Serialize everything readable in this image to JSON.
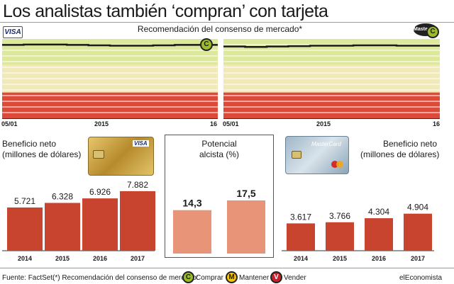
{
  "title": "Los analistas también ‘compran’ con tarjeta",
  "subtitle": "Recomendación del consenso de mercado*",
  "logos": {
    "visa": "VISA",
    "mastercard": "MasterCard"
  },
  "consensus_axis": {
    "start": "05/01",
    "mid": "2015",
    "end": "16"
  },
  "signal_letters": {
    "comprar": "C",
    "mantener": "M",
    "vender": "V"
  },
  "colors": {
    "buy_zone": "#dde89a",
    "hold_zone": "#f2e9b8",
    "sell_zone": "#dc4b3a",
    "gridline": "#ffffff",
    "bar_red": "#c9442f",
    "bar_salmon": "#e89478",
    "comprar_badge": "#9bbb2b",
    "mantener_badge": "#f2c511",
    "vender_badge": "#c8202b"
  },
  "left_panel": {
    "label_line1": "Beneficio neto",
    "label_line2": "(millones de dólares)",
    "card_icon": "credit-card-icon"
  },
  "right_panel": {
    "label_line1": "Beneficio neto",
    "label_line2": "(millones de dólares)",
    "card_icon": "credit-card-icon"
  },
  "middle_panel": {
    "label_line1": "Potencial",
    "label_line2": "alcista (%)"
  },
  "footer": {
    "source": "Fuente: FactSet.",
    "note": "(*) Recomendación del consenso de mercado:",
    "legend": [
      "Comprar",
      "Mantener",
      "Vender"
    ],
    "brand": "elEconomista"
  },
  "chart_data": [
    {
      "type": "line",
      "series": [
        {
          "values": [
            4.7,
            4.72,
            4.72,
            4.7,
            4.68,
            4.66,
            4.66,
            4.68,
            4.7,
            4.7,
            4.72
          ]
        }
      ],
      "x": [
        "05/01/2015",
        "2015",
        "2015",
        "2015",
        "2015",
        "2015",
        "2015",
        "2015",
        "2015",
        "2015",
        "2016"
      ],
      "xlabel": "",
      "ylabel": "",
      "tick_labels": [
        "05/01",
        "2015",
        "16"
      ],
      "zones": [
        "Comprar",
        "Mantener",
        "Vender"
      ],
      "grid": true
    },
    {
      "type": "line",
      "series": [
        {
          "values": [
            4.62,
            4.6,
            4.62,
            4.64,
            4.66,
            4.66,
            4.68,
            4.68,
            4.66,
            4.66,
            4.68
          ]
        }
      ],
      "x": [
        "05/01/2015",
        "2015",
        "2015",
        "2015",
        "2015",
        "2015",
        "2015",
        "2015",
        "2015",
        "2015",
        "2016"
      ],
      "xlabel": "",
      "ylabel": "",
      "tick_labels": [
        "05/01",
        "2015",
        "16"
      ],
      "zones": [
        "Comprar",
        "Mantener",
        "Vender"
      ],
      "grid": true
    },
    {
      "type": "bar",
      "categories": [
        "2014",
        "2015",
        "2016",
        "2017"
      ],
      "values": [
        5721,
        6328,
        6926,
        7882
      ],
      "value_labels": [
        "5.721",
        "6.328",
        "6.926",
        "7.882"
      ],
      "xlabel": "",
      "ylabel": "",
      "ylim": [
        0,
        9000
      ]
    },
    {
      "type": "bar",
      "categories": [
        "",
        ""
      ],
      "values": [
        14.3,
        17.5
      ],
      "value_labels": [
        "14,3",
        "17,5"
      ],
      "xlabel": "",
      "ylabel": "",
      "ylim": [
        0,
        21
      ]
    },
    {
      "type": "bar",
      "categories": [
        "2014",
        "2015",
        "2016",
        "2017"
      ],
      "values": [
        3617,
        3766,
        4304,
        4904
      ],
      "value_labels": [
        "3.617",
        "3.766",
        "4.304",
        "4.904"
      ],
      "xlabel": "",
      "ylabel": "",
      "ylim": [
        0,
        9000
      ]
    }
  ]
}
